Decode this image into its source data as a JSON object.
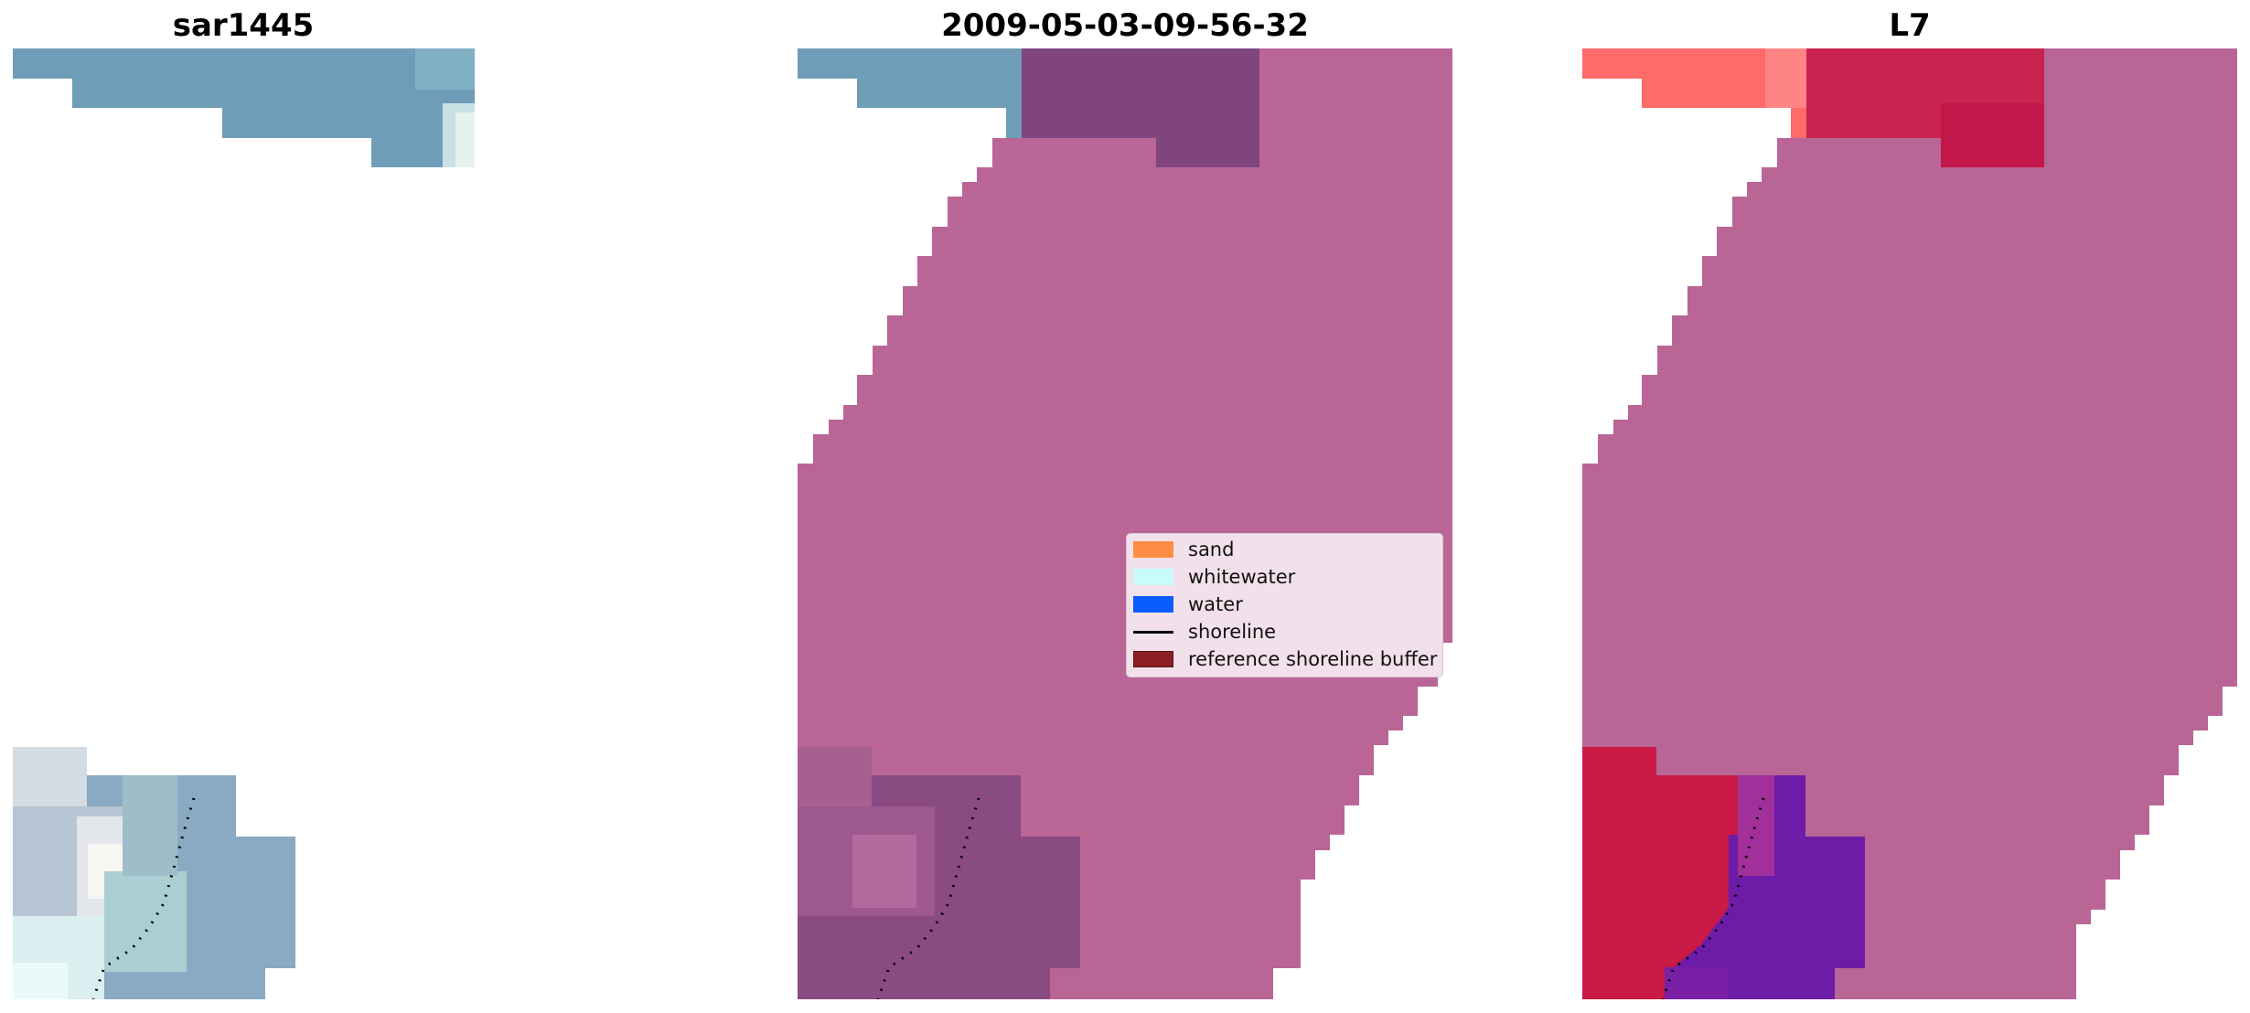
{
  "panels": [
    {
      "title": "sar1445"
    },
    {
      "title": "2009-05-03-09-56-32"
    },
    {
      "title": "L7"
    }
  ],
  "legend": {
    "items": [
      {
        "label": "sand",
        "color": "#ff8c45",
        "kind": "patch"
      },
      {
        "label": "whitewater",
        "color": "#c8fbfb",
        "kind": "patch"
      },
      {
        "label": "water",
        "color": "#0a5cff",
        "kind": "patch"
      },
      {
        "label": "shoreline",
        "color": "#000000",
        "kind": "line"
      },
      {
        "label": "reference shoreline buffer",
        "color": "#8b1e24",
        "kind": "patch"
      }
    ]
  },
  "colors": {
    "ocean_steel": "#6f9db7",
    "mask_purple": "#b96697",
    "dark_purple": "#80457c",
    "red": "#c81a45",
    "coral": "#ff6a6a",
    "violet": "#6d1ca8",
    "pale": "#dfe9ee"
  }
}
